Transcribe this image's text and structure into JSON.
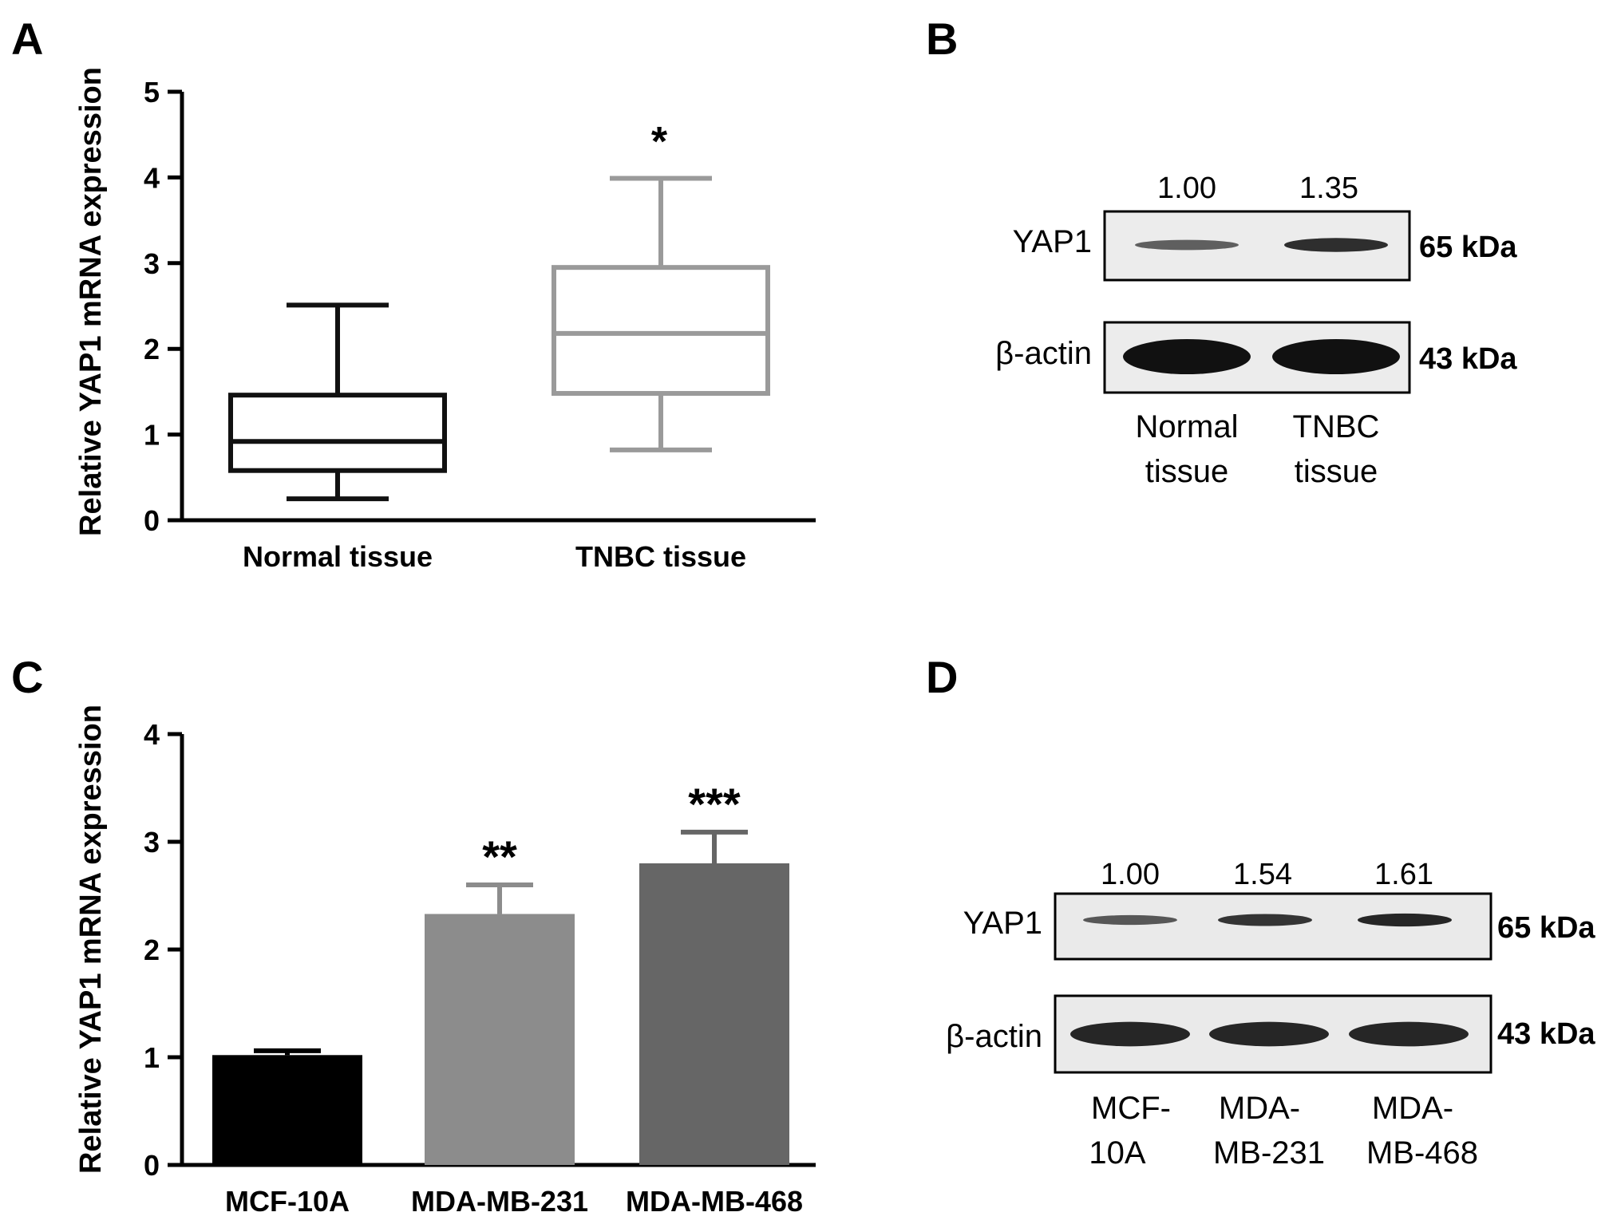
{
  "panels": {
    "A": {
      "letter": "A",
      "chart_data": {
        "type": "box",
        "ylabel": "Relative YAP1 mRNA expression",
        "ylim": [
          0,
          5
        ],
        "yticks": [
          0,
          1,
          2,
          3,
          4,
          5
        ],
        "categories": [
          "Normal tissue",
          "TNBC tissue"
        ],
        "boxes": [
          {
            "category": "Normal tissue",
            "min": 0.25,
            "q1": 0.58,
            "median": 0.92,
            "q3": 1.46,
            "max": 2.51,
            "color": "#111111"
          },
          {
            "category": "TNBC tissue",
            "min": 0.82,
            "q1": 1.48,
            "median": 2.18,
            "q3": 2.95,
            "max": 3.99,
            "color": "#9a9a9a"
          }
        ],
        "annotations": [
          {
            "category": "TNBC tissue",
            "text": "*"
          }
        ]
      }
    },
    "B": {
      "letter": "B",
      "blot": {
        "densities": [
          "1.00",
          "1.35"
        ],
        "bands": [
          {
            "protein": "YAP1",
            "size": "65 kDa",
            "intensity": [
              0.45,
              0.8
            ]
          },
          {
            "protein": "β-actin",
            "size": "43 kDa",
            "intensity": [
              1.0,
              1.0
            ]
          }
        ],
        "lanes": [
          [
            "Normal",
            "tissue"
          ],
          [
            "TNBC",
            "tissue"
          ]
        ]
      }
    },
    "C": {
      "letter": "C",
      "chart_data": {
        "type": "bar",
        "ylabel": "Relative YAP1 mRNA expression",
        "ylim": [
          0,
          4
        ],
        "yticks": [
          0,
          1,
          2,
          3,
          4
        ],
        "categories": [
          "MCF-10A",
          "MDA-MB-231",
          "MDA-MB-468"
        ],
        "values": [
          1.02,
          2.33,
          2.8
        ],
        "errors": [
          0.04,
          0.27,
          0.29
        ],
        "colors": [
          "#000000",
          "#8c8c8c",
          "#666666"
        ],
        "annotations": [
          "",
          "**",
          "***"
        ]
      }
    },
    "D": {
      "letter": "D",
      "blot": {
        "densities": [
          "1.00",
          "1.54",
          "1.61"
        ],
        "bands": [
          {
            "protein": "YAP1",
            "size": "65 kDa",
            "intensity": [
              0.5,
              0.75,
              0.85
            ]
          },
          {
            "protein": "β-actin",
            "size": "43 kDa",
            "intensity": [
              0.85,
              0.85,
              0.85
            ]
          }
        ],
        "lanes": [
          [
            "MCF-",
            "10A"
          ],
          [
            "MDA-",
            "MB-231"
          ],
          [
            "MDA-",
            "MB-468"
          ]
        ]
      }
    }
  }
}
